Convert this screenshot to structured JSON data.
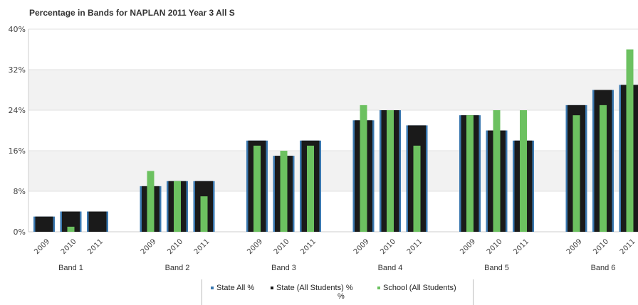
{
  "title": "Percentage in Bands for NAPLAN 2011 Year 3 All S",
  "colors": {
    "state_all": "#3a78b0",
    "state_all_students": "#1a1a1a",
    "school": "#6cc160",
    "grid_band": "#f2f2f2"
  },
  "legend": {
    "state_all": "State All %",
    "state_all_students": "State (All Students) %",
    "state_all_students_wrap": "%",
    "school": "School  (All Students)"
  },
  "chart_data": {
    "type": "bar",
    "title": "Percentage in Bands for NAPLAN 2011 Year 3 All S",
    "ylim": [
      0,
      40
    ],
    "yticks": [
      "0%",
      "8%",
      "16%",
      "24%",
      "32%",
      "40%"
    ],
    "ytick_values": [
      0,
      8,
      16,
      24,
      32,
      40
    ],
    "groups": [
      "Band 1",
      "Band 2",
      "Band 3",
      "Band 4",
      "Band 5",
      "Band 6"
    ],
    "years": [
      "2009",
      "2010",
      "2011"
    ],
    "series": [
      {
        "name": "State All %",
        "values": [
          [
            3,
            4,
            4
          ],
          [
            9,
            10,
            10
          ],
          [
            18,
            15,
            18
          ],
          [
            22,
            24,
            21
          ],
          [
            23,
            20,
            18
          ],
          [
            25,
            28,
            29
          ]
        ]
      },
      {
        "name": "State (All Students) %",
        "values": [
          [
            3,
            4,
            4
          ],
          [
            9,
            10,
            10
          ],
          [
            18,
            15,
            18
          ],
          [
            22,
            24,
            21
          ],
          [
            23,
            20,
            18
          ],
          [
            25,
            28,
            29
          ]
        ]
      },
      {
        "name": "School  (All Students)",
        "values": [
          [
            0,
            1,
            0
          ],
          [
            12,
            10,
            7
          ],
          [
            17,
            16,
            17
          ],
          [
            25,
            24,
            17
          ],
          [
            23,
            24,
            24
          ],
          [
            23,
            25,
            36
          ]
        ]
      }
    ],
    "grid": true,
    "legend_position": "bottom"
  }
}
